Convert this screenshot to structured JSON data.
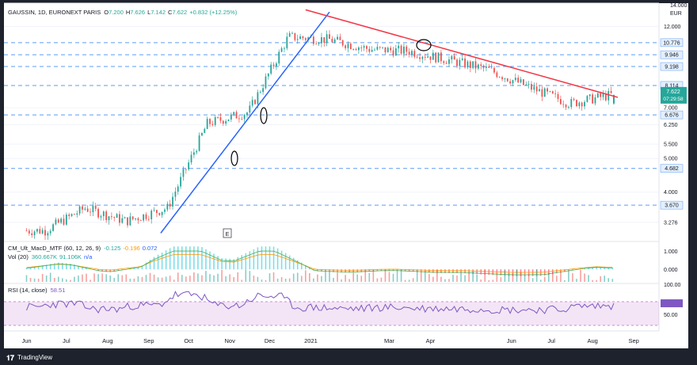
{
  "header": {
    "symbol": "GAUSSIN, 1D, EURONEXT PARIS",
    "open_label": "O",
    "open": "7.200",
    "high_label": "H",
    "high": "7.626",
    "low_label": "L",
    "low": "7.142",
    "close_label": "C",
    "close": "7.622",
    "change": "+0.832 (+12.25%)"
  },
  "currency": "EUR",
  "price_axis": {
    "ticks": [
      {
        "label": "14.000",
        "value": 14.0
      },
      {
        "label": "12.000",
        "value": 12.0
      },
      {
        "label": "7.000",
        "value": 7.0
      },
      {
        "label": "6.250",
        "value": 6.25
      },
      {
        "label": "5.500",
        "value": 5.5
      },
      {
        "label": "5.000",
        "value": 5.0
      },
      {
        "label": "4.000",
        "value": 4.0
      },
      {
        "label": "3.276",
        "value": 3.276
      }
    ],
    "level_badges": [
      {
        "label": "10.776",
        "value": 10.776
      },
      {
        "label": "9.946",
        "value": 9.946
      },
      {
        "label": "9.198",
        "value": 9.198
      },
      {
        "label": "8.114",
        "value": 8.114
      },
      {
        "label": "6.676",
        "value": 6.676
      },
      {
        "label": "4.682",
        "value": 4.682
      },
      {
        "label": "3.670",
        "value": 3.67
      }
    ],
    "current_price": "7.622",
    "countdown": "07:29:58"
  },
  "macd_pane": {
    "title": "CM_Ult_MacD_MTF (60, 12, 26, 9)",
    "values": [
      "-0.125",
      "-0.196",
      "0.072"
    ],
    "value_colors": [
      "#26a69a",
      "#ff9800",
      "#2962ff"
    ],
    "axis_ticks": [
      "1.000",
      "0.000"
    ]
  },
  "vol_pane": {
    "title": "Vol (20)",
    "value1": "360.667K",
    "value2": "91.106K",
    "value3": "n/a"
  },
  "rsi_pane": {
    "title": "RSI (14, close)",
    "value": "58.51",
    "axis_ticks": [
      "100.00",
      "50.00"
    ]
  },
  "time_axis": {
    "ticks": [
      "Jun",
      "Jul",
      "Aug",
      "Sep",
      "Oct",
      "Nov",
      "Dec",
      "2021",
      "Mar",
      "Apr",
      "Jun",
      "Jul",
      "Aug",
      "Sep"
    ]
  },
  "earnings_marker": "E",
  "brand": "TradingView",
  "colors": {
    "background": "#1e222d",
    "up": "#26a69a",
    "down": "#ef5350",
    "trend_support": "#2962ff",
    "trend_resistance": "#f23645",
    "levels": "#5b9cf6",
    "rsi": "#9c27b0"
  },
  "chart_data": {
    "type": "candlestick",
    "title": "GAUSSIN, 1D, EURONEXT PARIS",
    "ylabel": "EUR",
    "ylim": [
      2.9,
      14.0
    ],
    "x_range": [
      "2020-05-15",
      "2021-09-20"
    ],
    "horizontal_levels": [
      10.776,
      9.946,
      9.198,
      8.114,
      6.676,
      4.682,
      3.67
    ],
    "trendlines": [
      {
        "name": "support",
        "from": [
          "2020-09-10",
          3.05
        ],
        "to": [
          "2021-01-15",
          13.2
        ]
      },
      {
        "name": "resistance",
        "from": [
          "2020-12-28",
          13.4
        ],
        "to": [
          "2021-08-20",
          7.5
        ]
      }
    ],
    "monthly_closes": [
      {
        "month": "2020-06",
        "close": 3.1
      },
      {
        "month": "2020-07",
        "close": 3.6
      },
      {
        "month": "2020-08",
        "close": 3.3
      },
      {
        "month": "2020-09",
        "close": 3.6
      },
      {
        "month": "2020-10",
        "close": 6.3
      },
      {
        "month": "2020-11",
        "close": 6.8
      },
      {
        "month": "2020-12",
        "close": 11.2
      },
      {
        "month": "2021-01",
        "close": 11.0
      },
      {
        "month": "2021-02",
        "close": 10.3
      },
      {
        "month": "2021-03",
        "close": 10.2
      },
      {
        "month": "2021-04",
        "close": 9.6
      },
      {
        "month": "2021-05",
        "close": 9.0
      },
      {
        "month": "2021-06",
        "close": 8.0
      },
      {
        "month": "2021-07",
        "close": 7.2
      },
      {
        "month": "2021-08",
        "close": 7.622
      }
    ],
    "last_bar": {
      "open": 7.2,
      "high": 7.626,
      "low": 7.142,
      "close": 7.622
    },
    "macd_ylim": [
      -0.6,
      1.3
    ],
    "rsi_ylim": [
      0,
      100
    ],
    "rsi_last": 58.51
  }
}
